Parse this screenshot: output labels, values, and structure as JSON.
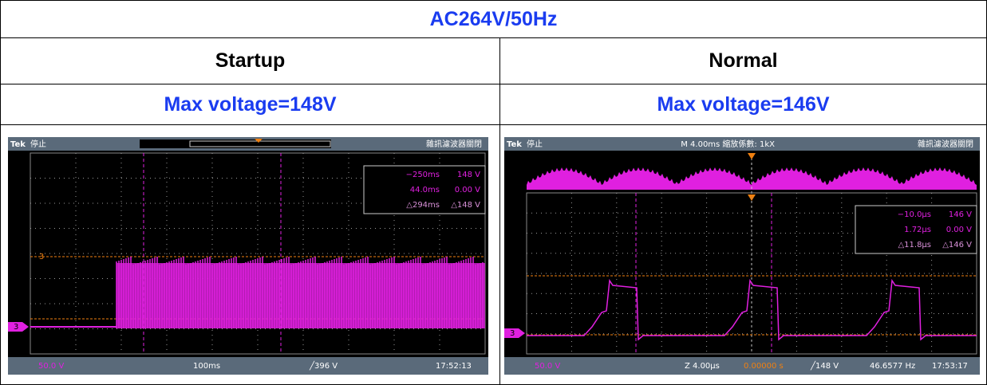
{
  "header": {
    "title": "AC264V/50Hz"
  },
  "columns": [
    {
      "label": "Startup",
      "max_voltage": "Max voltage=148V",
      "scope": {
        "brand": "Tek",
        "state": "停止",
        "filter": "雜訊濾波器關閉",
        "channel": "3",
        "readout": [
          [
            "−250ms",
            "148 V"
          ],
          [
            "44.0ms",
            "0.00 V"
          ],
          [
            "△294ms",
            "△148 V"
          ]
        ],
        "status": [
          "50.0 V",
          "100ms",
          "╱396 V",
          "17:52:13"
        ]
      }
    },
    {
      "label": "Normal",
      "max_voltage": "Max voltage=146V",
      "scope": {
        "brand": "Tek",
        "state": "停止",
        "zoom": "M 4.00ms 縮放係數: 1kX",
        "filter": "雜訊濾波器關閉",
        "channel": "3",
        "readout": [
          [
            "−10.0μs",
            "146 V"
          ],
          [
            "1.72μs",
            "0.00 V"
          ],
          [
            "△11.8μs",
            "△146 V"
          ]
        ],
        "status": [
          "50.0 V",
          "Z 4.00μs",
          "0.00000 s",
          "╱148 V",
          "46.6577 Hz",
          "17:53:17"
        ]
      }
    }
  ]
}
